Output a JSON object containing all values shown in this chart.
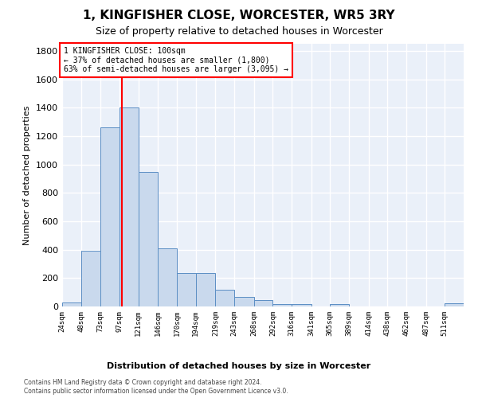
{
  "title": "1, KINGFISHER CLOSE, WORCESTER, WR5 3RY",
  "subtitle": "Size of property relative to detached houses in Worcester",
  "xlabel": "Distribution of detached houses by size in Worcester",
  "ylabel": "Number of detached properties",
  "bar_color": "#c9d9ed",
  "bar_edge_color": "#5b8ec4",
  "background_color": "#ffffff",
  "plot_bg_color": "#eaf0f9",
  "grid_color": "#ffffff",
  "red_line_x": 100,
  "annotation_line1": "1 KINGFISHER CLOSE: 100sqm",
  "annotation_line2": "← 37% of detached houses are smaller (1,800)",
  "annotation_line3": "63% of semi-detached houses are larger (3,095) →",
  "footer_line1": "Contains HM Land Registry data © Crown copyright and database right 2024.",
  "footer_line2": "Contains public sector information licensed under the Open Government Licence v3.0.",
  "bin_labels": [
    "24sqm",
    "48sqm",
    "73sqm",
    "97sqm",
    "121sqm",
    "146sqm",
    "170sqm",
    "194sqm",
    "219sqm",
    "243sqm",
    "268sqm",
    "292sqm",
    "316sqm",
    "341sqm",
    "365sqm",
    "389sqm",
    "414sqm",
    "438sqm",
    "462sqm",
    "487sqm",
    "511sqm"
  ],
  "bin_edges": [
    24,
    48,
    73,
    97,
    121,
    146,
    170,
    194,
    219,
    243,
    268,
    292,
    316,
    341,
    365,
    389,
    414,
    438,
    462,
    487,
    511
  ],
  "bar_heights": [
    30,
    390,
    1260,
    1400,
    950,
    410,
    235,
    235,
    115,
    70,
    45,
    15,
    15,
    0,
    15,
    0,
    0,
    0,
    0,
    0,
    20
  ],
  "ylim": [
    0,
    1850
  ],
  "yticks": [
    0,
    200,
    400,
    600,
    800,
    1000,
    1200,
    1400,
    1600,
    1800
  ]
}
